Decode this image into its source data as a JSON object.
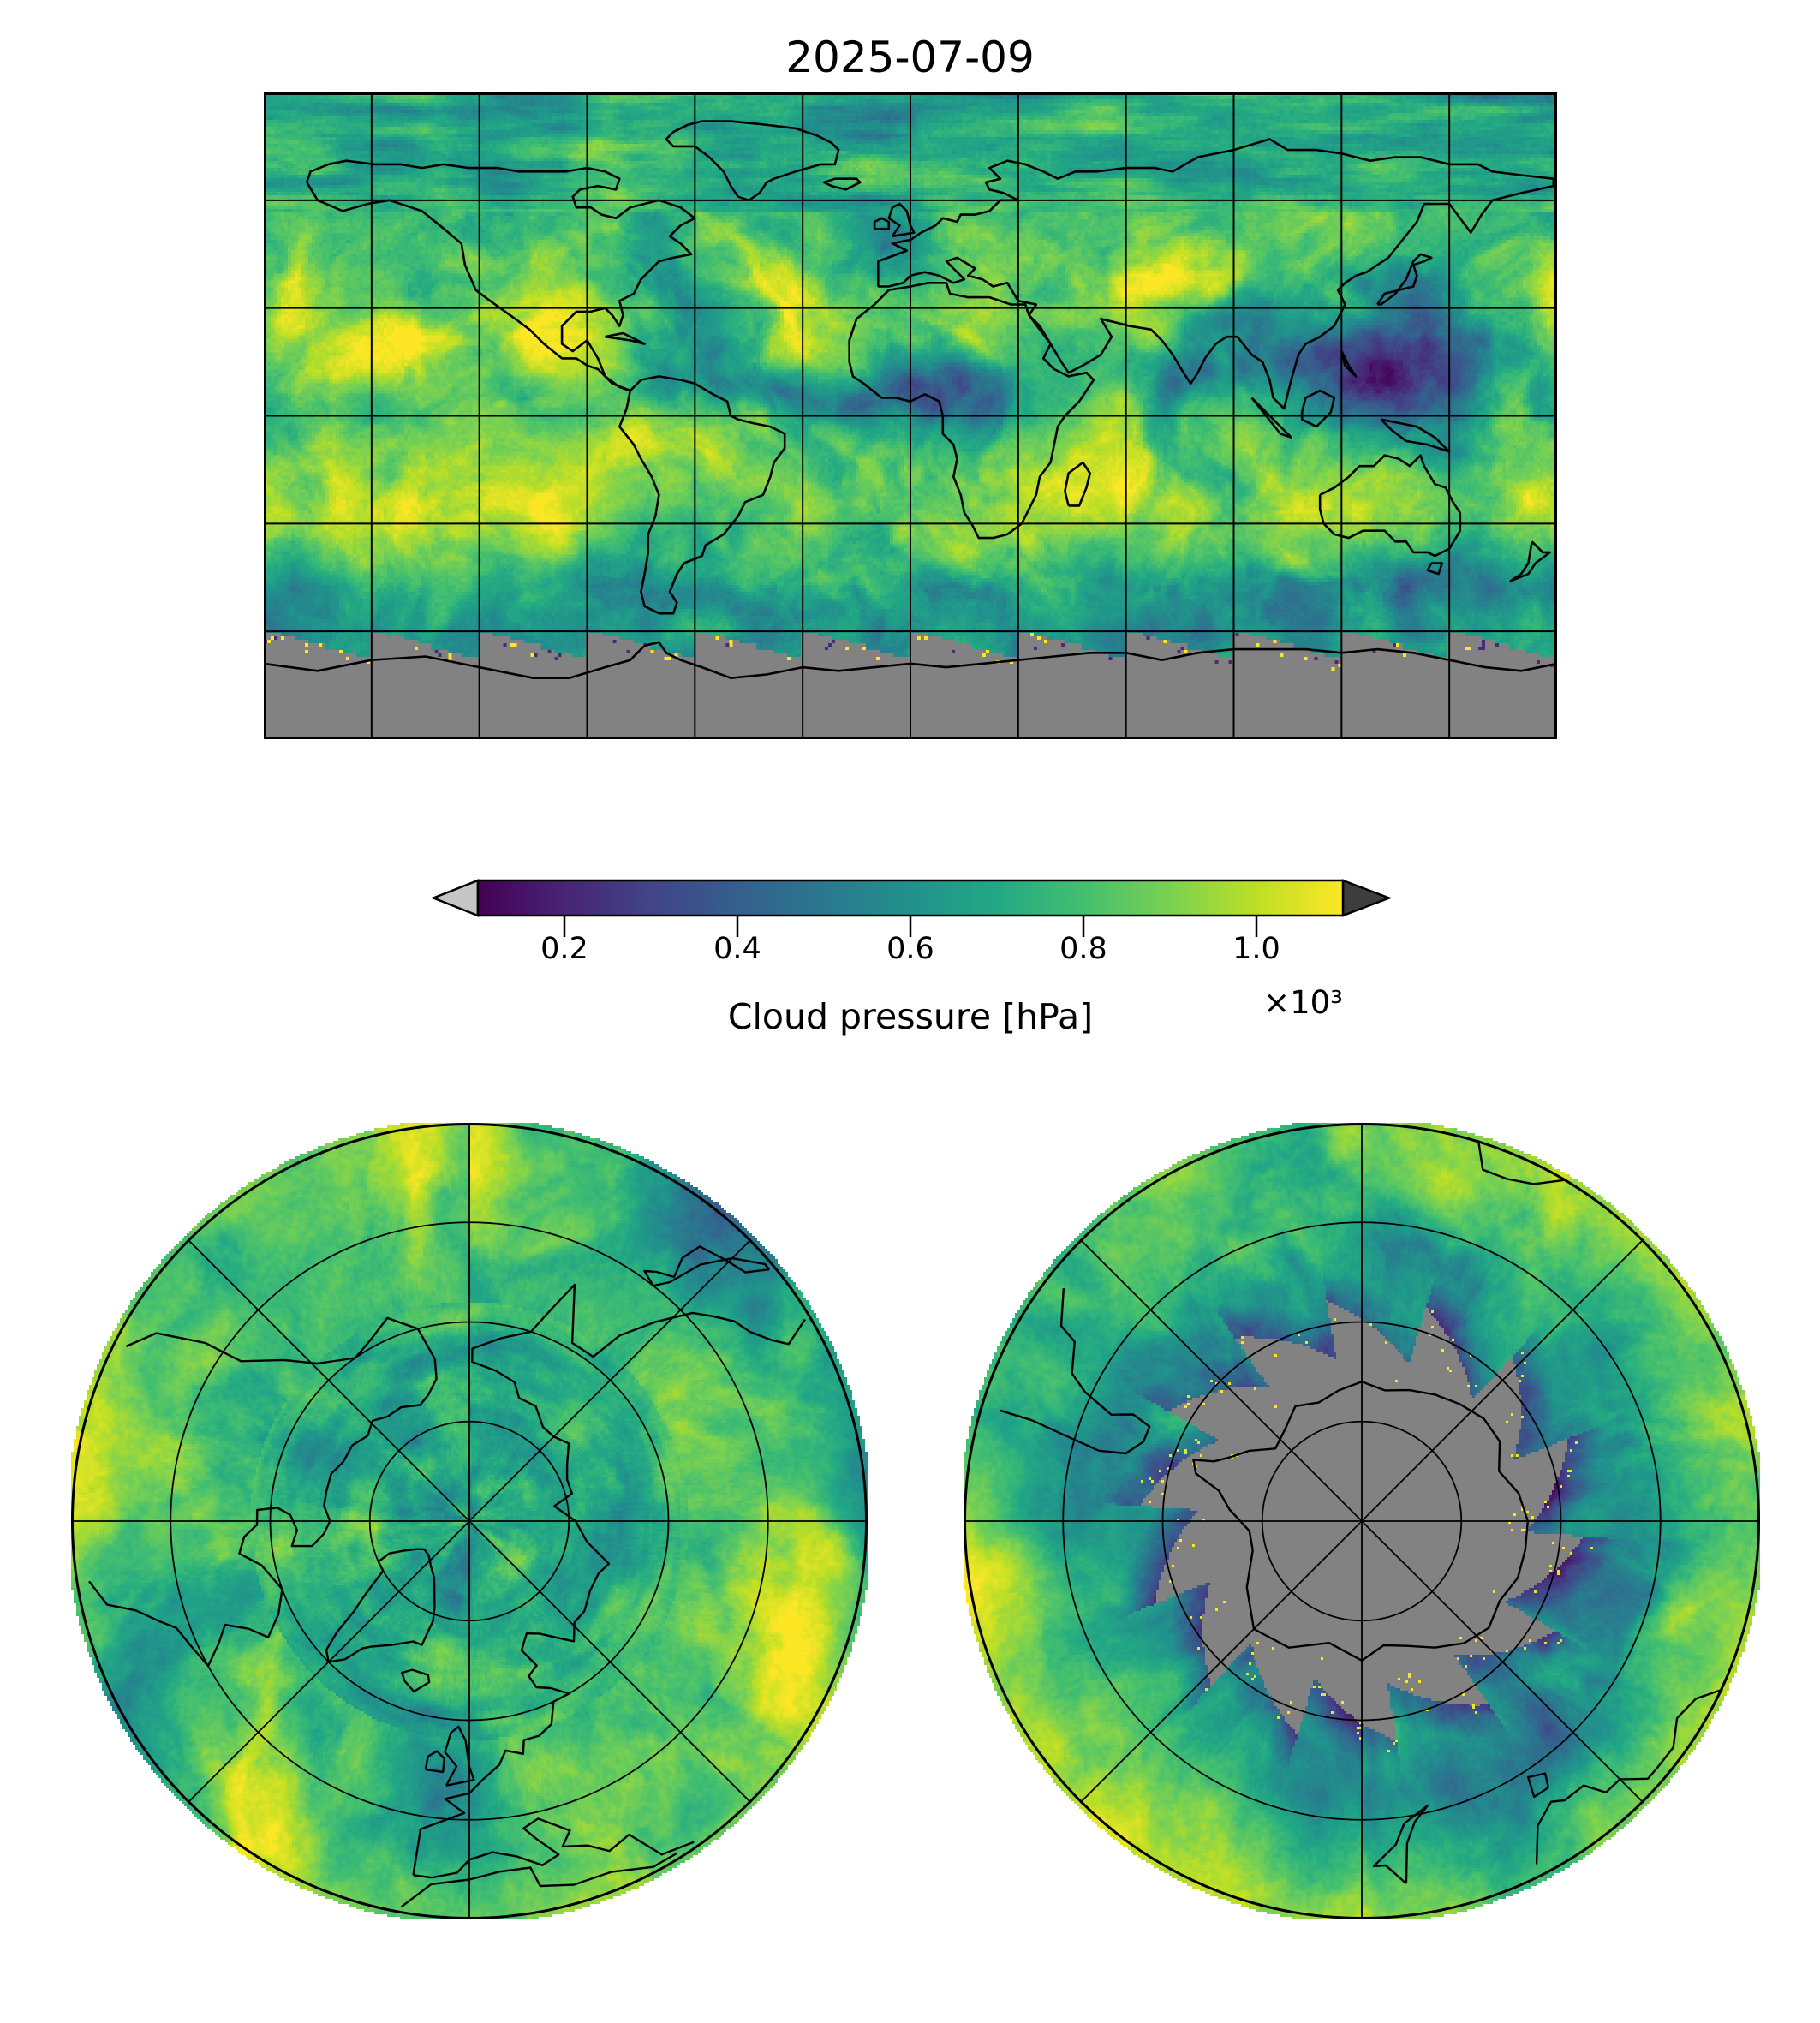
{
  "figure": {
    "title": "2025-07-09",
    "background_color": "#ffffff",
    "text_color": "#000000"
  },
  "colorbar": {
    "label": "Cloud pressure [hPa]",
    "offset_label": "×10³",
    "ticks": [
      "0.2",
      "0.4",
      "0.6",
      "0.8",
      "1.0"
    ],
    "tick_values": [
      200,
      400,
      600,
      800,
      1000
    ],
    "vmin": 100,
    "vmax": 1100,
    "units": "hPa",
    "colormap": "viridis",
    "orientation": "horizontal",
    "stops": [
      "#440154",
      "#482475",
      "#414487",
      "#355f8d",
      "#2a788e",
      "#21918c",
      "#22a884",
      "#44bf70",
      "#7ad151",
      "#bddf26",
      "#fde725"
    ],
    "under_arrow_color": "#c6c6c6",
    "over_arrow_color": "#3d3d3d"
  },
  "colors": {
    "missing_data_gray": "#828282",
    "coastline": "#000000",
    "gridline": "#000000",
    "pole_dot": "#ffffff"
  },
  "chart_data": [
    {
      "type": "heatmap",
      "panel": "global-map",
      "title": "2025-07-09",
      "variable": "Cloud pressure",
      "units": "hPa",
      "colormap": "viridis",
      "vmin": 100,
      "vmax": 1100,
      "colorbar_ticks_hPa": [
        200,
        400,
        600,
        800,
        1000
      ],
      "projection": "equirectangular",
      "lon_range": [
        -180,
        180
      ],
      "lat_range": [
        -90,
        90
      ],
      "gridline_spacing_deg": {
        "lon": 30,
        "lat": 30
      },
      "features": [
        "coastlines",
        "gridlines"
      ],
      "missing_data": "gray region south of ~60S with sawtooth satellite-swath edge (polar night over Antarctica)",
      "legend_position": "horizontal colorbar below map"
    },
    {
      "type": "heatmap",
      "panel": "north-polar-map",
      "variable": "Cloud pressure",
      "units": "hPa",
      "colormap": "viridis",
      "vmin": 100,
      "vmax": 1100,
      "projection": "azimuthal (North Pole centered)",
      "lat_range": [
        30,
        90
      ],
      "parallel_circles_deg": [
        75,
        60,
        45
      ],
      "meridian_spacing_deg": 45,
      "features": [
        "coastlines",
        "gridlines"
      ],
      "missing_data": "none"
    },
    {
      "type": "heatmap",
      "panel": "south-polar-map",
      "variable": "Cloud pressure",
      "units": "hPa",
      "colormap": "viridis",
      "vmin": 100,
      "vmax": 1100,
      "projection": "azimuthal (South Pole centered)",
      "lat_range": [
        -90,
        -30
      ],
      "parallel_circles_deg": [
        -75,
        -60,
        -45
      ],
      "meridian_spacing_deg": 45,
      "features": [
        "coastlines",
        "gridlines"
      ],
      "missing_data": "gray jagged pinwheel region over Antarctica (polar night), Antarctic coastline drawn on top"
    }
  ]
}
